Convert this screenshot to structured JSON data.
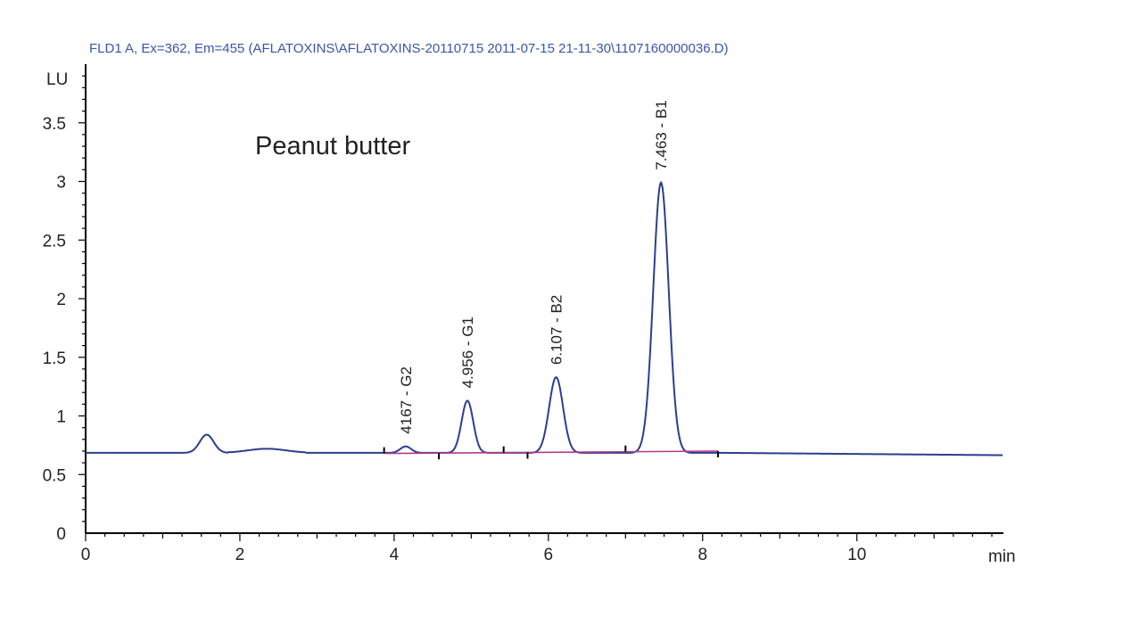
{
  "header": "FLD1 A, Ex=362, Em=455 (AFLATOXINS\\AFLATOXINS-20110715 2011-07-15 21-11-30\\1107160000036.D)",
  "chart_data": {
    "type": "line",
    "annotation": "Peanut butter",
    "xlabel": "min",
    "ylabel": "LU",
    "xlim": [
      0,
      11.9
    ],
    "ylim": [
      0,
      4
    ],
    "x_ticks": [
      {
        "value": 0,
        "label": "0"
      },
      {
        "value": 2,
        "label": "2"
      },
      {
        "value": 4,
        "label": "4"
      },
      {
        "value": 6,
        "label": "6"
      },
      {
        "value": 8,
        "label": "8"
      },
      {
        "value": 10,
        "label": "10"
      }
    ],
    "y_ticks": [
      {
        "value": 0,
        "label": "0"
      },
      {
        "value": 0.5,
        "label": "0.5"
      },
      {
        "value": 1,
        "label": "1"
      },
      {
        "value": 1.5,
        "label": "1.5"
      },
      {
        "value": 2,
        "label": "2"
      },
      {
        "value": 2.5,
        "label": "2.5"
      },
      {
        "value": 3,
        "label": "3"
      },
      {
        "value": 3.5,
        "label": "3.5"
      }
    ],
    "baseline_value": 0.685,
    "signal_color": "#2b3f8f",
    "integration_color": "#b03c8c",
    "peaks": [
      {
        "label": "",
        "rt": 1.57,
        "height": 0.84,
        "width": 0.09
      },
      {
        "label": "4167 - G2",
        "rt": 4.15,
        "height": 0.74,
        "width": 0.07
      },
      {
        "label": "4.956 - G1",
        "rt": 4.95,
        "height": 1.13,
        "width": 0.075
      },
      {
        "label": "6.107 - B2",
        "rt": 6.1,
        "height": 1.33,
        "width": 0.09
      },
      {
        "label": "7.463 - B1",
        "rt": 7.46,
        "height": 2.99,
        "width": 0.1
      }
    ],
    "integration_baseline": {
      "x": [
        3.9,
        8.2
      ],
      "y": [
        0.68,
        0.7
      ]
    },
    "integration_markers": [
      3.87,
      4.58,
      5.42,
      5.73,
      7.0,
      8.2
    ]
  }
}
